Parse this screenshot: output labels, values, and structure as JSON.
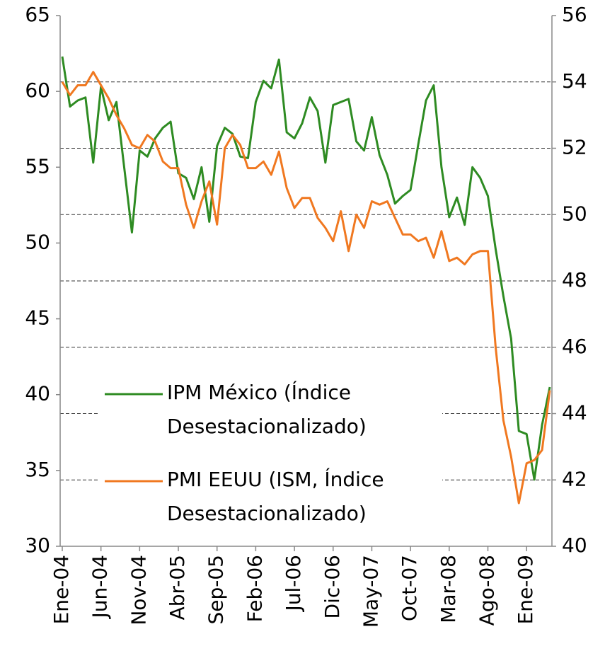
{
  "chart_data": {
    "type": "line",
    "categories": [
      "Ene-04",
      null,
      null,
      null,
      null,
      "Jun-04",
      null,
      null,
      null,
      null,
      "Nov-04",
      null,
      null,
      null,
      null,
      "Abr-05",
      null,
      null,
      null,
      null,
      "Sep-05",
      null,
      null,
      null,
      null,
      "Feb-06",
      null,
      null,
      null,
      null,
      "Jul-06",
      null,
      null,
      null,
      null,
      "Dic-06",
      null,
      null,
      null,
      null,
      "May-07",
      null,
      null,
      null,
      null,
      "Oct-07",
      null,
      null,
      null,
      null,
      "Mar-08",
      null,
      null,
      null,
      null,
      "Ago-08",
      null,
      null,
      null,
      null,
      "Ene-09",
      null,
      null,
      null
    ],
    "series": [
      {
        "name": "IPM México (Índice Desestacionalizado)",
        "color": "#2e8b22",
        "axis": "y",
        "values": [
          62.3,
          59.0,
          59.4,
          59.6,
          55.3,
          60.3,
          58.1,
          59.3,
          55.0,
          50.7,
          56.1,
          55.7,
          56.9,
          57.6,
          58.0,
          54.6,
          54.3,
          52.9,
          55.0,
          51.4,
          56.4,
          57.6,
          57.2,
          55.7,
          55.6,
          59.3,
          60.7,
          60.2,
          62.1,
          57.3,
          56.9,
          57.9,
          59.6,
          58.7,
          55.3,
          59.1,
          59.3,
          59.5,
          56.7,
          56.1,
          58.3,
          55.8,
          54.5,
          52.6,
          53.1,
          53.5,
          56.5,
          59.4,
          60.4,
          55.0,
          51.7,
          53.0,
          51.2,
          55.0,
          54.3,
          53.1,
          49.6,
          46.5,
          43.7,
          37.6,
          37.4,
          34.4,
          38.0,
          40.5
        ]
      },
      {
        "name": "PMI EEUU (ISM, Índice Desestacionalizado)",
        "color": "#f07820",
        "axis": "y2",
        "values": [
          54.0,
          53.6,
          53.9,
          53.9,
          54.3,
          53.9,
          53.5,
          53.0,
          52.6,
          52.1,
          52.0,
          52.4,
          52.2,
          51.6,
          51.4,
          51.4,
          50.3,
          49.6,
          50.4,
          51.0,
          49.7,
          52.0,
          52.4,
          52.1,
          51.4,
          51.4,
          51.6,
          51.2,
          51.9,
          50.8,
          50.2,
          50.5,
          50.5,
          49.9,
          49.6,
          49.2,
          50.1,
          48.9,
          50.0,
          49.6,
          50.4,
          50.3,
          50.4,
          49.9,
          49.4,
          49.4,
          49.2,
          49.3,
          48.7,
          49.5,
          48.6,
          48.7,
          48.5,
          48.8,
          48.9,
          48.9,
          46.0,
          43.8,
          42.7,
          41.3,
          42.5,
          42.6,
          42.9,
          44.7
        ]
      }
    ],
    "ylim": [
      30,
      65
    ],
    "yticks": [
      30,
      35,
      40,
      45,
      50,
      55,
      60,
      65
    ],
    "y2lim": [
      40,
      56
    ],
    "y2ticks": [
      40,
      42,
      44,
      46,
      48,
      50,
      52,
      54,
      56
    ],
    "grid": true
  }
}
